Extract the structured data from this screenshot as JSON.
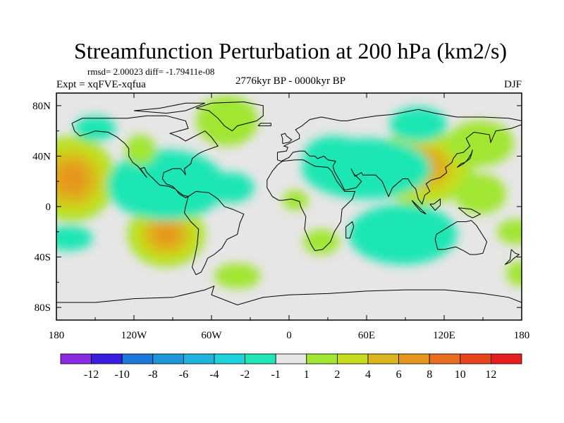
{
  "chart_data": {
    "type": "heatmap",
    "title": "Streamfunction Perturbation at 200 hPa (km2/s)",
    "stats_line": "rmsd= 2.00023 diff= -1.79411e-08",
    "left_label": "Expt = xqFVE-xqfua",
    "center_label": "2776kyr BP - 0000kyr BP",
    "season_label": "DJF",
    "lon_range": [
      -180,
      180
    ],
    "lat_range": [
      -90,
      90
    ],
    "x_ticks": [
      "180",
      "120W",
      "60W",
      "0",
      "60E",
      "120E",
      "180"
    ],
    "x_tick_values": [
      -180,
      -120,
      -60,
      0,
      60,
      120,
      180
    ],
    "y_ticks": [
      "80N",
      "40N",
      "0",
      "40S",
      "80S"
    ],
    "y_tick_values": [
      80,
      40,
      0,
      -40,
      -80
    ],
    "colorbar_labels": [
      "-12",
      "-10",
      "-8",
      "-6",
      "-4",
      "-2",
      "-1",
      "1",
      "2",
      "4",
      "6",
      "8",
      "10",
      "12"
    ],
    "colorbar_colors": [
      "#8a2be2",
      "#3a1ee0",
      "#1e78dc",
      "#1e96dc",
      "#1eb4dc",
      "#1ed2dc",
      "#1ee6b4",
      "#e6e6e6",
      "#a0e632",
      "#c8dc1e",
      "#dcb41e",
      "#e6961e",
      "#e66e1e",
      "#e6461e",
      "#e61e1e"
    ],
    "field_features": [
      {
        "lon": -168,
        "lat": 22,
        "value": 7.0
      },
      {
        "lon": -95,
        "lat": -22,
        "value": 6.5
      },
      {
        "lon": 103,
        "lat": 31,
        "value": 6.2
      },
      {
        "lon": -95,
        "lat": 17,
        "value": -5.0
      },
      {
        "lon": 60,
        "lat": 30,
        "value": -3.5
      },
      {
        "lon": 88,
        "lat": -22,
        "value": -4.0
      },
      {
        "lon": 148,
        "lat": 50,
        "value": 1.7
      },
      {
        "lon": -48,
        "lat": 68,
        "value": 1.8
      },
      {
        "lon": -115,
        "lat": 45,
        "value": 1.5
      },
      {
        "lon": 148,
        "lat": 10,
        "value": 1.6
      },
      {
        "lon": 100,
        "lat": 65,
        "value": -1.8
      },
      {
        "lon": 25,
        "lat": -28,
        "value": 1.7
      },
      {
        "lon": 5,
        "lat": 5,
        "value": 1.5
      },
      {
        "lon": -40,
        "lat": -55,
        "value": 1.7
      },
      {
        "lon": 175,
        "lat": -20,
        "value": 1.5
      },
      {
        "lon": 178,
        "lat": -53,
        "value": 1.7
      },
      {
        "lon": 35,
        "lat": 40,
        "value": -1.6
      },
      {
        "lon": -45,
        "lat": 15,
        "value": -1.5
      },
      {
        "lon": -150,
        "lat": 62,
        "value": -1.4
      },
      {
        "lon": -170,
        "lat": -25,
        "value": -1.4
      }
    ]
  }
}
